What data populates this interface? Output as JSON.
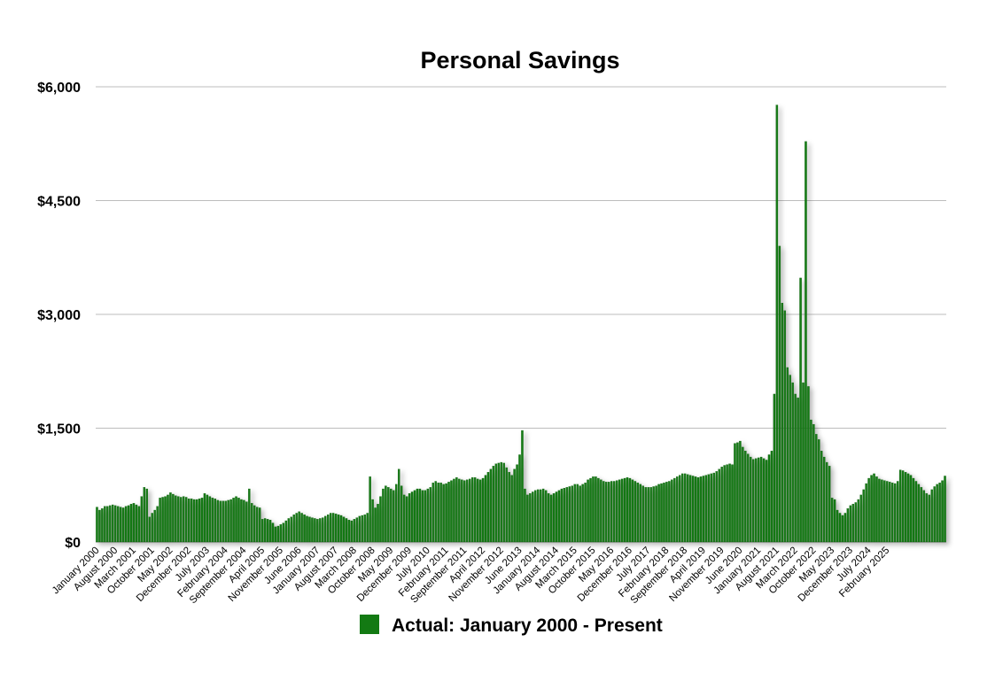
{
  "chart_data": {
    "type": "bar",
    "title": "Personal Savings",
    "xlabel": "",
    "ylabel": "",
    "ylim": [
      0,
      6000
    ],
    "yticks": [
      0,
      1500,
      3000,
      4500,
      6000
    ],
    "ytick_labels": [
      "$0",
      "$1,500",
      "$3,000",
      "$4,500",
      "$6,000"
    ],
    "xtick_labels": [
      "January 2000",
      "August 2000",
      "March 2001",
      "October 2001",
      "May 2002",
      "December 2002",
      "July 2003",
      "February 2004",
      "September 2004",
      "April 2005",
      "November 2005",
      "June 2006",
      "January 2007",
      "August 2007",
      "March 2008",
      "October 2008",
      "May 2009",
      "December 2009",
      "July 2010",
      "February 2011",
      "September 2011",
      "April 2012",
      "November 2012",
      "June 2013",
      "January 2014",
      "August 2014",
      "March 2015",
      "October 2015",
      "May 2016",
      "December 2016",
      "July 2017",
      "February 2018",
      "September 2018",
      "April 2019",
      "November 2019",
      "June 2020",
      "January 2021",
      "August 2021",
      "March 2022",
      "October 2022",
      "May 2023",
      "December 2023",
      "July 2024",
      "February 2025"
    ],
    "grid": true,
    "legend_position": "bottom-center",
    "colors": {
      "bar": "#137a13"
    },
    "series": [
      {
        "name": "Actual: January 2000 - Present",
        "start": "January 2000",
        "frequency": "monthly",
        "values": [
          460,
          420,
          440,
          470,
          470,
          480,
          490,
          480,
          470,
          460,
          450,
          470,
          480,
          500,
          510,
          490,
          470,
          600,
          720,
          700,
          330,
          380,
          420,
          470,
          580,
          590,
          600,
          620,
          650,
          630,
          610,
          600,
          590,
          600,
          590,
          570,
          570,
          560,
          560,
          570,
          580,
          640,
          620,
          600,
          580,
          570,
          550,
          540,
          540,
          540,
          550,
          560,
          580,
          600,
          580,
          560,
          550,
          530,
          700,
          510,
          480,
          460,
          450,
          300,
          310,
          300,
          290,
          250,
          200,
          210,
          230,
          250,
          280,
          310,
          330,
          360,
          380,
          400,
          380,
          360,
          340,
          330,
          320,
          310,
          300,
          310,
          320,
          340,
          360,
          380,
          380,
          370,
          360,
          350,
          330,
          310,
          290,
          280,
          300,
          320,
          340,
          350,
          360,
          380,
          860,
          560,
          450,
          500,
          600,
          700,
          740,
          720,
          700,
          680,
          760,
          960,
          740,
          620,
          600,
          640,
          660,
          680,
          700,
          700,
          680,
          680,
          700,
          720,
          780,
          800,
          780,
          780,
          760,
          770,
          790,
          810,
          830,
          850,
          830,
          820,
          810,
          820,
          830,
          850,
          850,
          830,
          820,
          840,
          880,
          920,
          960,
          1000,
          1030,
          1040,
          1050,
          1040,
          980,
          920,
          880,
          960,
          1020,
          1150,
          1470,
          700,
          620,
          640,
          660,
          680,
          690,
          690,
          700,
          680,
          640,
          620,
          640,
          660,
          680,
          700,
          710,
          720,
          730,
          740,
          760,
          760,
          740,
          760,
          780,
          820,
          840,
          860,
          860,
          840,
          820,
          800,
          790,
          790,
          800,
          800,
          810,
          820,
          830,
          840,
          850,
          840,
          820,
          800,
          780,
          760,
          740,
          720,
          720,
          720,
          730,
          740,
          760,
          770,
          780,
          790,
          800,
          820,
          840,
          860,
          880,
          900,
          900,
          890,
          880,
          870,
          860,
          850,
          860,
          870,
          880,
          890,
          900,
          910,
          930,
          960,
          990,
          1010,
          1020,
          1030,
          1020,
          1300,
          1310,
          1330,
          1250,
          1200,
          1160,
          1120,
          1090,
          1100,
          1110,
          1120,
          1100,
          1080,
          1150,
          1200,
          1950,
          5760,
          3900,
          3150,
          3050,
          2300,
          2200,
          2100,
          1950,
          1900,
          3480,
          2100,
          5280,
          2050,
          1610,
          1550,
          1420,
          1350,
          1200,
          1120,
          1050,
          1000,
          580,
          560,
          420,
          380,
          350,
          380,
          440,
          480,
          500,
          520,
          560,
          620,
          690,
          770,
          840,
          880,
          900,
          860,
          830,
          820,
          810,
          800,
          790,
          780,
          770,
          800,
          950,
          940,
          920,
          900,
          880,
          840,
          800,
          760,
          720,
          680,
          640,
          620,
          690,
          730,
          760,
          780,
          810,
          870
        ]
      }
    ]
  }
}
